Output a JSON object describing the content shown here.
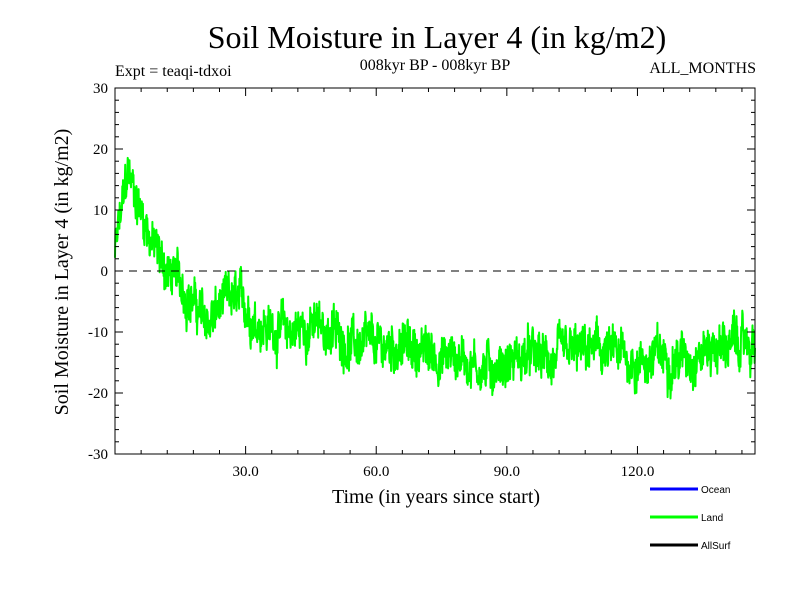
{
  "chart_data": {
    "type": "line",
    "title": "Soil Moisture in Layer 4 (in kg/m2)",
    "subtitle_left": "Expt = teaqi-tdxoi",
    "subtitle_center": "008kyr BP - 008kyr BP",
    "subtitle_right": "ALL_MONTHS",
    "xlabel": "Time (in years since start)",
    "ylabel": "Soil Moisture in Layer 4 (in kg/m2)",
    "xlim": [
      0,
      147
    ],
    "ylim": [
      -30,
      30
    ],
    "x_ticks": [
      30,
      60,
      90,
      120
    ],
    "x_tick_labels": [
      "30.0",
      "60.0",
      "90.0",
      "120.0"
    ],
    "y_ticks": [
      -30,
      -20,
      -10,
      0,
      10,
      20,
      30
    ],
    "y_tick_labels": [
      "-30",
      "-20",
      "-10",
      "0",
      "10",
      "20",
      "30"
    ],
    "zero_line": true,
    "series": [
      {
        "name": "Land",
        "color": "#00ff00",
        "description": "monthly values, noisy; approximate envelope sampled every 3 years",
        "x": [
          0,
          3,
          6,
          9,
          12,
          15,
          18,
          21,
          24,
          27,
          30,
          35,
          40,
          45,
          50,
          55,
          60,
          65,
          70,
          75,
          80,
          85,
          90,
          95,
          100,
          105,
          110,
          115,
          120,
          125,
          130,
          135,
          140,
          147
        ],
        "values": [
          3,
          16,
          10,
          4,
          0,
          -2,
          -5,
          -9,
          -6,
          -5,
          -6,
          -9,
          -10,
          -9,
          -10,
          -12,
          -13,
          -12,
          -13,
          -14,
          -14,
          -16,
          -15,
          -14,
          -15,
          -14,
          -13,
          -14,
          -15,
          -14,
          -14,
          -13,
          -12,
          -12
        ]
      }
    ]
  },
  "legend": [
    {
      "label": "Ocean",
      "color": "#0000ff"
    },
    {
      "label": "Land",
      "color": "#00ff00"
    },
    {
      "label": "AllSurf",
      "color": "#000000"
    }
  ]
}
